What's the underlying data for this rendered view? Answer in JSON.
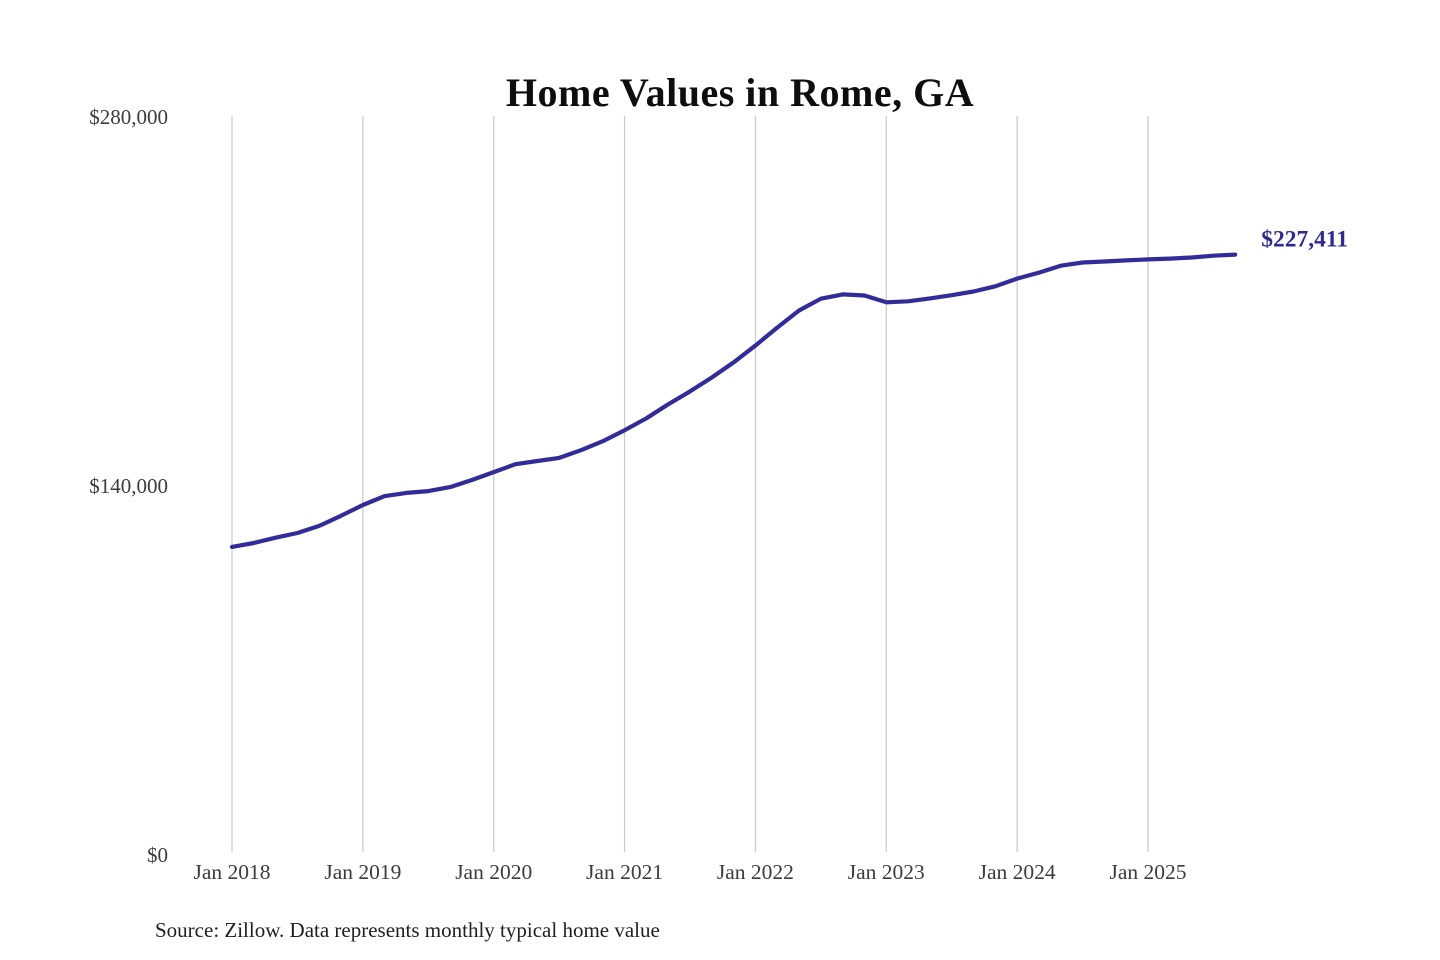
{
  "page": {
    "title": "Home Values in Rome, GA",
    "source_note": "Source: Zillow. Data represents monthly typical home value"
  },
  "colors": {
    "line": "#322c99",
    "end_label": "#2e2a8f",
    "gridline": "#cccccc",
    "tick_label": "#3c3c3c",
    "title": "#0e0e0e",
    "source": "#1f1f1f",
    "background": "#ffffff"
  },
  "chart_data": {
    "type": "line",
    "title": "Home Values in Rome, GA",
    "xlabel": "",
    "ylabel": "",
    "ylim": [
      0,
      280000
    ],
    "grid": "vertical-only",
    "legend": "none",
    "y_ticks": [
      {
        "label": "$280,000",
        "value": 280000
      },
      {
        "label": "$140,000",
        "value": 140000
      },
      {
        "label": "$0",
        "value": 0
      }
    ],
    "x_ticks": [
      {
        "label": "Jan 2018",
        "month_index": 0
      },
      {
        "label": "Jan 2019",
        "month_index": 12
      },
      {
        "label": "Jan 2020",
        "month_index": 24
      },
      {
        "label": "Jan 2021",
        "month_index": 36
      },
      {
        "label": "Jan 2022",
        "month_index": 48
      },
      {
        "label": "Jan 2023",
        "month_index": 60
      },
      {
        "label": "Jan 2024",
        "month_index": 72
      },
      {
        "label": "Jan 2025",
        "month_index": 84
      }
    ],
    "series": [
      {
        "name": "Monthly typical home value",
        "unit": "USD",
        "points": [
          {
            "date": "2018-01",
            "value": 116500
          },
          {
            "date": "2018-03",
            "value": 118000
          },
          {
            "date": "2018-05",
            "value": 120000
          },
          {
            "date": "2018-07",
            "value": 121800
          },
          {
            "date": "2018-09",
            "value": 124500
          },
          {
            "date": "2018-11",
            "value": 128300
          },
          {
            "date": "2019-01",
            "value": 132400
          },
          {
            "date": "2019-03",
            "value": 135800
          },
          {
            "date": "2019-05",
            "value": 137000
          },
          {
            "date": "2019-07",
            "value": 137700
          },
          {
            "date": "2019-09",
            "value": 139200
          },
          {
            "date": "2019-11",
            "value": 141900
          },
          {
            "date": "2020-01",
            "value": 144900
          },
          {
            "date": "2020-03",
            "value": 147900
          },
          {
            "date": "2020-05",
            "value": 149100
          },
          {
            "date": "2020-07",
            "value": 150300
          },
          {
            "date": "2020-09",
            "value": 153200
          },
          {
            "date": "2020-11",
            "value": 156600
          },
          {
            "date": "2021-01",
            "value": 160800
          },
          {
            "date": "2021-03",
            "value": 165300
          },
          {
            "date": "2021-05",
            "value": 170600
          },
          {
            "date": "2021-07",
            "value": 175500
          },
          {
            "date": "2021-09",
            "value": 180800
          },
          {
            "date": "2021-11",
            "value": 186500
          },
          {
            "date": "2022-01",
            "value": 192900
          },
          {
            "date": "2022-03",
            "value": 199700
          },
          {
            "date": "2022-05",
            "value": 206200
          },
          {
            "date": "2022-07",
            "value": 210700
          },
          {
            "date": "2022-09",
            "value": 212300
          },
          {
            "date": "2022-11",
            "value": 211900
          },
          {
            "date": "2023-01",
            "value": 209300
          },
          {
            "date": "2023-03",
            "value": 209700
          },
          {
            "date": "2023-05",
            "value": 210800
          },
          {
            "date": "2023-07",
            "value": 212000
          },
          {
            "date": "2023-09",
            "value": 213400
          },
          {
            "date": "2023-11",
            "value": 215400
          },
          {
            "date": "2024-01",
            "value": 218300
          },
          {
            "date": "2024-03",
            "value": 220600
          },
          {
            "date": "2024-05",
            "value": 223200
          },
          {
            "date": "2024-07",
            "value": 224400
          },
          {
            "date": "2024-09",
            "value": 224800
          },
          {
            "date": "2024-11",
            "value": 225200
          },
          {
            "date": "2025-01",
            "value": 225600
          },
          {
            "date": "2025-03",
            "value": 225900
          },
          {
            "date": "2025-05",
            "value": 226300
          },
          {
            "date": "2025-07",
            "value": 227000
          },
          {
            "date": "2025-09",
            "value": 227411
          }
        ]
      }
    ],
    "end_annotation": {
      "label": "$227,411",
      "value": 227411,
      "date": "2025-09"
    }
  }
}
